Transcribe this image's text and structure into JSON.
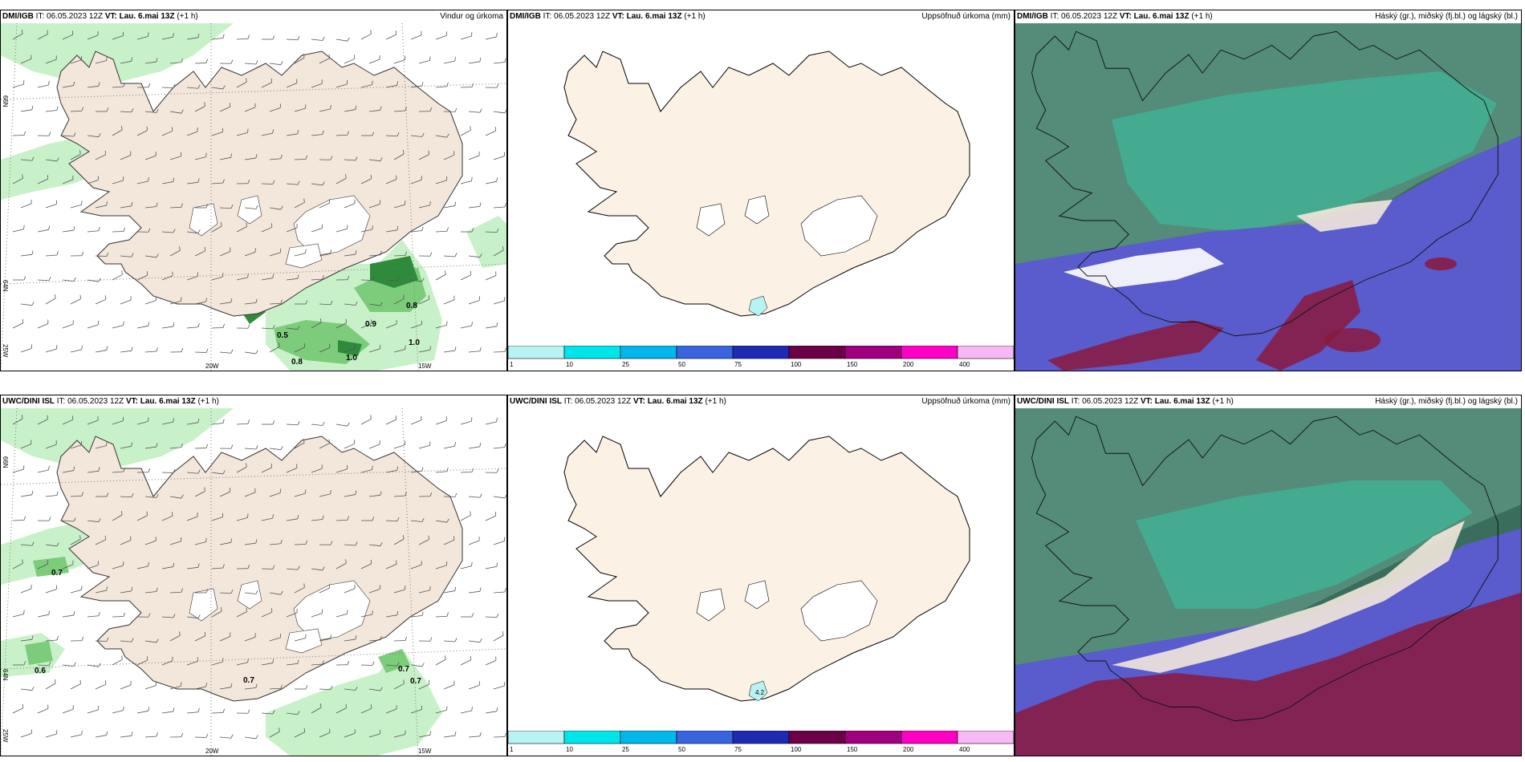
{
  "rows": [
    {
      "source": "DMI/IGB",
      "it": "IT: 06.05.2023 12Z",
      "vt": "VT: Lau. 6.mai 13Z",
      "lead": "(+1 h)",
      "panels": {
        "wind_title": "Vindur og úrkoma",
        "accum_title": "Uppsöfnuð úrkoma (mm)",
        "cloud_title": "Háský (gr.), miðský (fj.bl.) og lágský (bl.)"
      },
      "wind_values": [
        "0.8",
        "0.9",
        "0.5",
        "1.0",
        "1.0",
        "0.8"
      ],
      "accum_values": []
    },
    {
      "source": "UWC/DINI ISL",
      "it": "IT: 06.05.2023 12Z",
      "vt": "VT: Lau. 6.mai 13Z",
      "lead": "(+1 h)",
      "panels": {
        "wind_title": "",
        "accum_title": "Uppsöfnuð úrkoma (mm)",
        "cloud_title": "Háský (gr.), miðský (fj.bl.) og lágský (bl.)"
      },
      "wind_values": [
        "0.7",
        "0.6",
        "0.7",
        "0.7",
        "0.7"
      ],
      "accum_values": [
        "4.2"
      ]
    }
  ],
  "axis_labels": {
    "lat_66": "66N",
    "lat_64": "64N",
    "lon_25": "25W",
    "lon_20": "20W",
    "lon_15": "15W"
  },
  "colorbar": {
    "ticks": [
      "1",
      "10",
      "25",
      "50",
      "75",
      "100",
      "150",
      "200",
      "400"
    ],
    "colors": [
      "#b8f3f3",
      "#00e5ea",
      "#00b6ea",
      "#3a63e0",
      "#1f2ab3",
      "#6b0047",
      "#a0007f",
      "#ff00c4",
      "#f7b9f4"
    ]
  },
  "colors": {
    "land": "#f3e7dc",
    "glacier": "#ffffff",
    "precip_light": "#c9f1c9",
    "precip_mid": "#7ccc7c",
    "precip_dark": "#2f8a3c",
    "high_cloud": "#3b6d5c",
    "mid_cloud_teal": "#3fb59a",
    "low_cloud": "#5a5bcc",
    "low_cloud_dark": "#8a1a3e"
  }
}
